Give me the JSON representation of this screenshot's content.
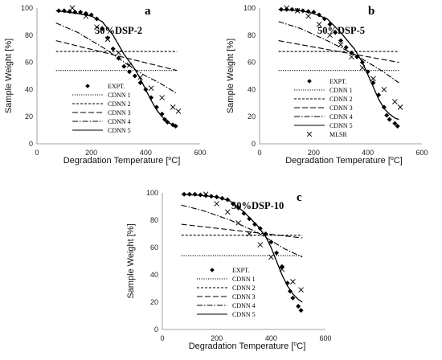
{
  "chart_data": [
    {
      "type": "line",
      "panel_letter": "a",
      "title": "50%DSP-2",
      "xlabel": "Degradation Temperature [",
      "xlabel_unit": "oC",
      "xlabel_end": "]",
      "ylabel": "Sample Weight [%]",
      "xlim": [
        0,
        600
      ],
      "ylim": [
        0,
        100
      ],
      "xticks": [
        "0",
        "200",
        "400",
        "600"
      ],
      "yticks": [
        "0",
        "20",
        "40",
        "60",
        "80",
        "100"
      ],
      "legend_position": "bottom-left",
      "series": [
        {
          "name": "EXPT.",
          "style": "diamond",
          "x": [
            80,
            100,
            120,
            140,
            160,
            180,
            200,
            220,
            240,
            260,
            280,
            300,
            320,
            340,
            360,
            380,
            400,
            420,
            440,
            460,
            470,
            480,
            500,
            510
          ],
          "y": [
            98,
            98,
            97.5,
            97,
            97,
            96,
            95,
            92,
            85,
            78,
            70,
            63,
            57,
            53,
            50,
            45,
            40,
            34,
            27,
            22,
            18,
            16,
            14,
            13
          ]
        },
        {
          "name": "CDNN 1",
          "style": "dotted",
          "x": [
            70,
            515
          ],
          "y": [
            54,
            54
          ]
        },
        {
          "name": "CDNN 2",
          "style": "dashed-short",
          "x": [
            70,
            515
          ],
          "y": [
            68,
            68
          ]
        },
        {
          "name": "CDNN 3",
          "style": "dashed-long",
          "x": [
            70,
            515
          ],
          "y": [
            76,
            54
          ]
        },
        {
          "name": "CDNN 4",
          "style": "dash-dot",
          "x": [
            70,
            150,
            250,
            350,
            400,
            450,
            515
          ],
          "y": [
            89,
            82,
            70,
            56,
            50,
            45,
            37
          ]
        },
        {
          "name": "CDNN 5",
          "style": "solid",
          "x": [
            70,
            150,
            200,
            240,
            280,
            320,
            360,
            380,
            400,
            420,
            440,
            460,
            480,
            500,
            515
          ],
          "y": [
            98,
            96,
            94,
            90,
            80,
            66,
            55,
            48,
            40,
            32,
            25,
            20,
            16,
            14,
            13
          ]
        },
        {
          "name": "MLSR",
          "style": "cross",
          "legend": false,
          "x": [
            130,
            180,
            220,
            260,
            300,
            340,
            380,
            420,
            460,
            500,
            520
          ],
          "y": [
            100,
            94,
            86,
            77,
            67,
            58,
            49,
            41,
            34,
            27,
            24
          ]
        }
      ]
    },
    {
      "type": "line",
      "panel_letter": "b",
      "title": "50%DSP-5",
      "xlabel": "Degradation Temperature [",
      "xlabel_unit": "oC",
      "xlabel_end": "]",
      "ylabel": "Sample Weight [%]",
      "xlim": [
        0,
        600
      ],
      "ylim": [
        0,
        100
      ],
      "xticks": [
        "0",
        "200",
        "400",
        "600"
      ],
      "yticks": [
        "0",
        "20",
        "40",
        "60",
        "80",
        "100"
      ],
      "legend_position": "bottom-left",
      "series": [
        {
          "name": "EXPT.",
          "style": "diamond",
          "x": [
            80,
            100,
            120,
            140,
            160,
            180,
            200,
            220,
            240,
            260,
            280,
            300,
            320,
            340,
            360,
            380,
            400,
            420,
            440,
            460,
            470,
            480,
            500,
            510
          ],
          "y": [
            99,
            99,
            99,
            98.5,
            98,
            97.5,
            97,
            95,
            92,
            88,
            82,
            76,
            71,
            67,
            64,
            60,
            53,
            45,
            36,
            27,
            21,
            18,
            15,
            13
          ]
        },
        {
          "name": "CDNN 1",
          "style": "dotted",
          "x": [
            70,
            515
          ],
          "y": [
            54,
            54
          ]
        },
        {
          "name": "CDNN 2",
          "style": "dashed-short",
          "x": [
            70,
            515
          ],
          "y": [
            68,
            68
          ]
        },
        {
          "name": "CDNN 3",
          "style": "dashed-long",
          "x": [
            70,
            515
          ],
          "y": [
            76,
            60
          ]
        },
        {
          "name": "CDNN 4",
          "style": "dash-dot",
          "x": [
            70,
            150,
            250,
            350,
            400,
            450,
            515
          ],
          "y": [
            90,
            85,
            76,
            66,
            60,
            54,
            45
          ]
        },
        {
          "name": "CDNN 5",
          "style": "solid",
          "x": [
            70,
            150,
            200,
            250,
            300,
            350,
            380,
            400,
            420,
            440,
            460,
            480,
            500,
            515
          ],
          "y": [
            99,
            98,
            96,
            92,
            82,
            70,
            60,
            51,
            42,
            33,
            26,
            22,
            19,
            18
          ]
        },
        {
          "name": "MLSR",
          "style": "cross",
          "x": [
            100,
            140,
            180,
            220,
            260,
            300,
            340,
            380,
            420,
            460,
            500,
            520
          ],
          "y": [
            100,
            98,
            94,
            88,
            80,
            73,
            64,
            56,
            48,
            40,
            31,
            27
          ]
        }
      ]
    },
    {
      "type": "line",
      "panel_letter": "c",
      "title": "50%DSP-10",
      "xlabel": "Degradation Temperature [",
      "xlabel_unit": "oC",
      "xlabel_end": "]",
      "ylabel": "Sample Weight [%]",
      "xlim": [
        0,
        600
      ],
      "ylim": [
        0,
        100
      ],
      "xticks": [
        "0",
        "200",
        "400",
        "600"
      ],
      "yticks": [
        "0",
        "20",
        "40",
        "60",
        "80",
        "100"
      ],
      "legend_position": "bottom-left",
      "series": [
        {
          "name": "EXPT.",
          "style": "diamond",
          "x": [
            80,
            100,
            120,
            140,
            160,
            180,
            200,
            220,
            240,
            260,
            280,
            300,
            320,
            340,
            360,
            380,
            400,
            420,
            440,
            460,
            470,
            480,
            500,
            510
          ],
          "y": [
            99,
            99,
            99,
            98.5,
            98,
            97.5,
            97,
            96,
            95,
            92,
            89,
            85,
            81,
            77,
            74,
            70,
            64,
            56,
            46,
            34,
            28,
            23,
            17,
            14
          ]
        },
        {
          "name": "CDNN 1",
          "style": "dotted",
          "x": [
            70,
            515
          ],
          "y": [
            54,
            54
          ]
        },
        {
          "name": "CDNN 2",
          "style": "dashed-short",
          "x": [
            70,
            515
          ],
          "y": [
            69,
            69
          ]
        },
        {
          "name": "CDNN 3",
          "style": "dashed-long",
          "x": [
            70,
            515
          ],
          "y": [
            77,
            67
          ]
        },
        {
          "name": "CDNN 4",
          "style": "dash-dot",
          "x": [
            70,
            150,
            250,
            350,
            400,
            450,
            515
          ],
          "y": [
            91,
            87,
            80,
            71,
            65,
            59,
            53
          ]
        },
        {
          "name": "CDNN 5",
          "style": "solid",
          "x": [
            70,
            150,
            200,
            250,
            300,
            350,
            380,
            400,
            420,
            440,
            460,
            480,
            500,
            515
          ],
          "y": [
            99,
            98,
            97,
            94,
            86,
            76,
            68,
            60,
            50,
            40,
            32,
            26,
            22,
            20
          ]
        },
        {
          "name": "MLSR",
          "style": "cross",
          "legend": false,
          "x": [
            160,
            200,
            240,
            280,
            320,
            360,
            400,
            440,
            480,
            510
          ],
          "y": [
            99,
            92,
            86,
            78,
            70,
            62,
            53,
            44,
            35,
            29
          ]
        }
      ]
    }
  ]
}
